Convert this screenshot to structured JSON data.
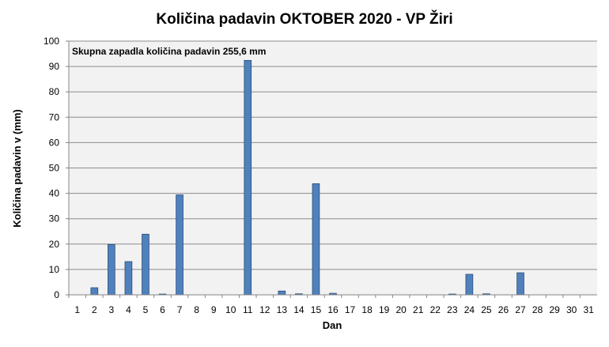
{
  "chart_data": {
    "type": "bar",
    "title": "Količina padavin OKTOBER 2020 - VP Žiri",
    "xlabel": "Dan",
    "ylabel": "Količina padavin v (mm)",
    "annotation": "Skupna zapadla količina padavin 255,6 mm",
    "ylim": [
      0,
      100
    ],
    "yticks": [
      0,
      10,
      20,
      30,
      40,
      50,
      60,
      70,
      80,
      90,
      100
    ],
    "grid": true,
    "legend": "none",
    "categories": [
      "1",
      "2",
      "3",
      "4",
      "5",
      "6",
      "7",
      "8",
      "9",
      "10",
      "11",
      "12",
      "13",
      "14",
      "15",
      "16",
      "17",
      "18",
      "19",
      "20",
      "21",
      "22",
      "23",
      "24",
      "25",
      "26",
      "27",
      "28",
      "29",
      "30",
      "31"
    ],
    "values": [
      0,
      2.8,
      19.8,
      13.1,
      23.9,
      0.3,
      39.4,
      0,
      0,
      0,
      92.4,
      0,
      1.5,
      0.4,
      43.8,
      0.6,
      0,
      0,
      0,
      0,
      0,
      0,
      0.3,
      8.1,
      0.4,
      0,
      8.7,
      0,
      0,
      0,
      0
    ],
    "colors": {
      "bar": "#4f81bd",
      "bar_border": "#2c4d75",
      "plot_bg": "#f2f2f2",
      "grid": "#8c8c8c"
    }
  }
}
